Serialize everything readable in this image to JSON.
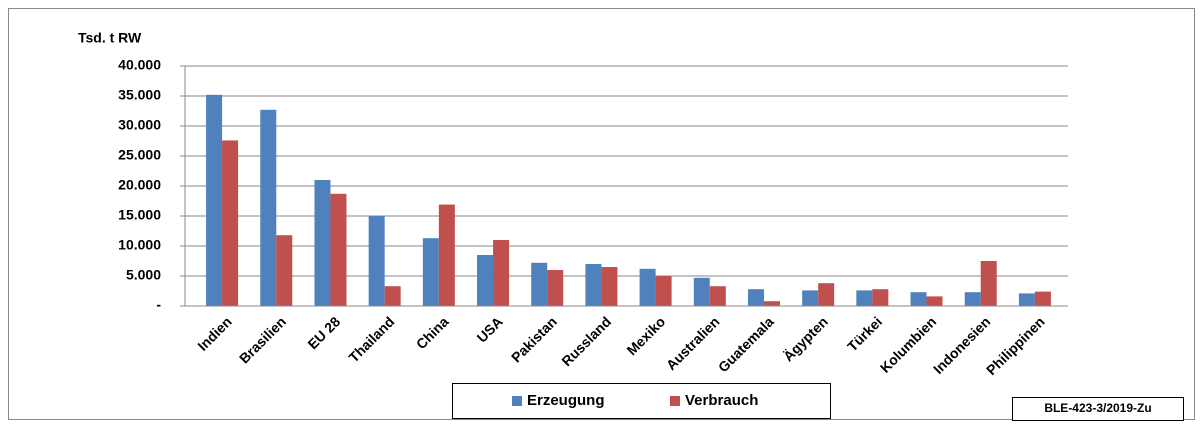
{
  "chart_data": {
    "type": "bar",
    "y_axis_label": "Tsd. t RW",
    "categories": [
      "Indien",
      "Brasilien",
      "EU 28",
      "Thailand",
      "China",
      "USA",
      "Pakistan",
      "Russland",
      "Mexiko",
      "Australien",
      "Guatemala",
      "Ägypten",
      "Türkei",
      "Kolumbien",
      "Indonesien",
      "Philippinen"
    ],
    "series": [
      {
        "name": "Erzeugung",
        "color": "#4f81bd",
        "values": [
          35200,
          32700,
          21000,
          15000,
          11300,
          8500,
          7200,
          7000,
          6200,
          4700,
          2800,
          2600,
          2600,
          2300,
          2300,
          2100
        ]
      },
      {
        "name": "Verbrauch",
        "color": "#c0504d",
        "values": [
          27600,
          11800,
          18700,
          3300,
          16900,
          11000,
          6000,
          6500,
          5000,
          3300,
          800,
          3800,
          2800,
          1600,
          7500,
          2400
        ]
      }
    ],
    "ylim": [
      0,
      40000
    ],
    "yticks": [
      {
        "value": 0,
        "label": "-"
      },
      {
        "value": 5000,
        "label": "5.000"
      },
      {
        "value": 10000,
        "label": "10.000"
      },
      {
        "value": 15000,
        "label": "15.000"
      },
      {
        "value": 20000,
        "label": "20.000"
      },
      {
        "value": 25000,
        "label": "25.000"
      },
      {
        "value": 30000,
        "label": "30.000"
      },
      {
        "value": 35000,
        "label": "35.000"
      },
      {
        "value": 40000,
        "label": "40.000"
      }
    ],
    "grid": true,
    "source_note": "BLE-423-3/2019-Zu"
  }
}
